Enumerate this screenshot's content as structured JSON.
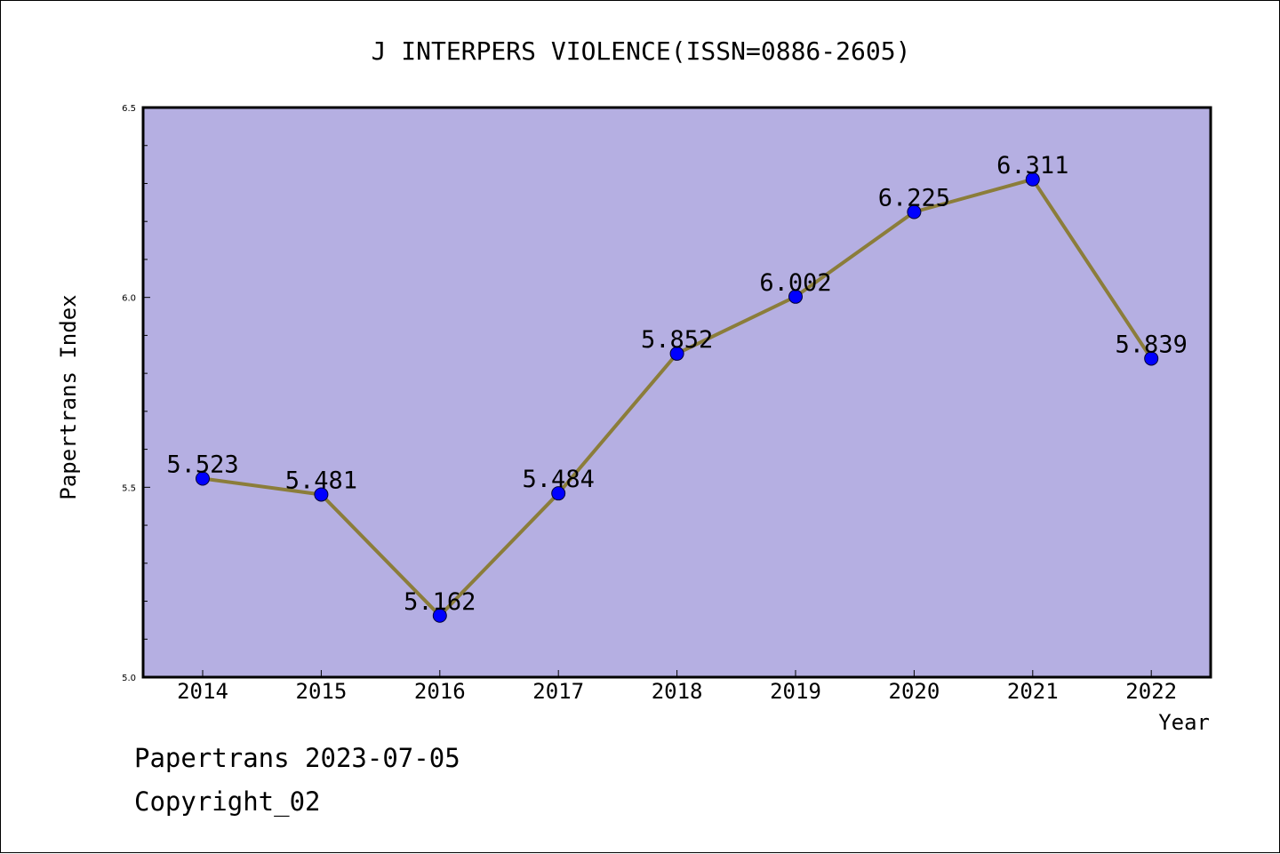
{
  "footer": {
    "date_line": "Papertrans 2023-07-05",
    "copyright_line": "Copyright_02"
  },
  "colors": {
    "plot_background": "#b5afe2",
    "line": "#8b7d3a",
    "marker_fill": "#0000ff",
    "frame": "#000000"
  },
  "chart_data": {
    "type": "line",
    "title": "J INTERPERS VIOLENCE(ISSN=0886-2605)",
    "xlabel": "Year",
    "ylabel": "Papertrans Index",
    "categories": [
      "2014",
      "2015",
      "2016",
      "2017",
      "2018",
      "2019",
      "2020",
      "2021",
      "2022"
    ],
    "series": [
      {
        "values": [
          5.523,
          5.481,
          5.162,
          5.484,
          5.852,
          6.002,
          6.225,
          6.311,
          5.839
        ],
        "labels": [
          "5.523",
          "5.481",
          "5.162",
          "5.484",
          "5.852",
          "6.002",
          "6.225",
          "6.311",
          "5.839"
        ]
      }
    ],
    "ylim": [
      5.0,
      6.5
    ],
    "yticks": [
      "5.0",
      "5.5",
      "6.0",
      "6.5"
    ],
    "y_minor_step": 0.1,
    "grid": false,
    "legend": "none",
    "marker": "circle"
  }
}
